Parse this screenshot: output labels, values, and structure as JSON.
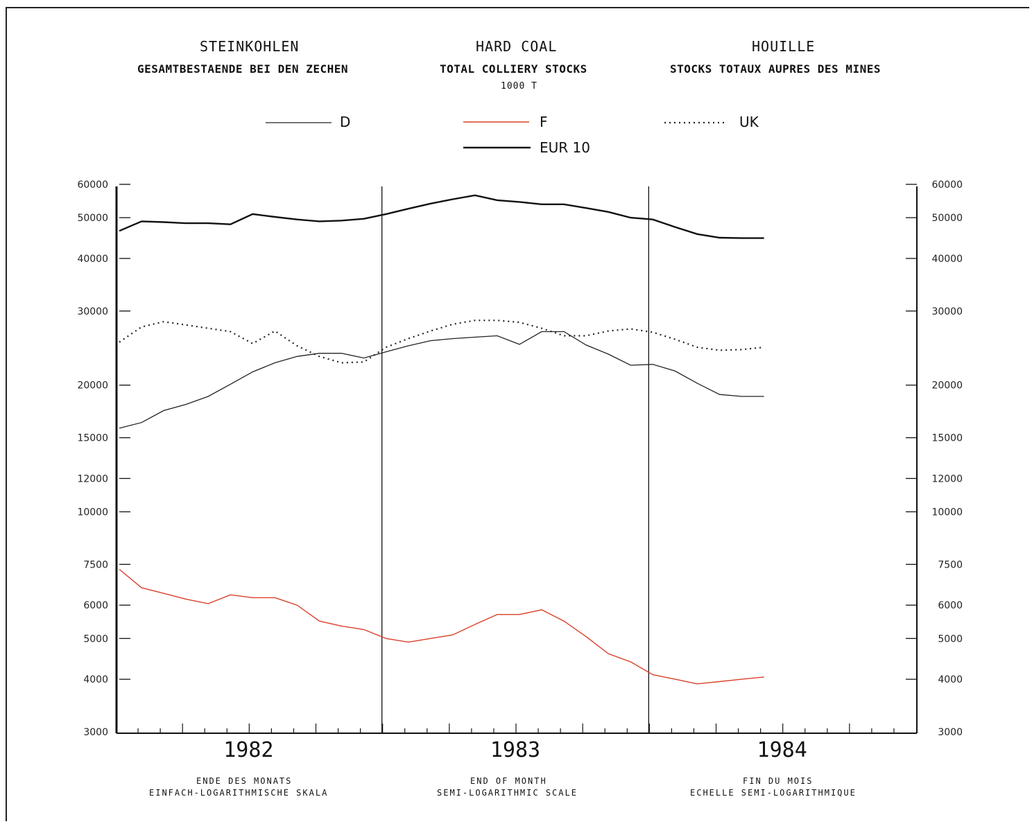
{
  "titles": {
    "de": {
      "title": "STEINKOHLEN",
      "subtitle": "GESAMTBESTAENDE BEI DEN ZECHEN"
    },
    "en": {
      "title": "HARD COAL",
      "subtitle": "TOTAL COLLIERY STOCKS",
      "unit": "1000 T"
    },
    "fr": {
      "title": "HOUILLE",
      "subtitle": "STOCKS TOTAUX AUPRES DES MINES"
    }
  },
  "footer": {
    "de": {
      "line1": "ENDE DES MONATS",
      "line2": "EINFACH-LOGARITHMISCHE SKALA"
    },
    "en": {
      "line1": "END OF MONTH",
      "line2": "SEMI-LOGARITHMIC SCALE"
    },
    "fr": {
      "line1": "FIN DU MOIS",
      "line2": "ECHELLE SEMI-LOGARITHMIQUE"
    }
  },
  "colors": {
    "D": "#222222",
    "F": "#d9402a",
    "UK": "#222222",
    "EUR 10": "#111111"
  },
  "chart_data": {
    "type": "line",
    "title": "HARD COAL",
    "subtitle": "TOTAL COLLIERY STOCKS",
    "ylabel": "1000 T",
    "y_scale": "log",
    "ylim": [
      3000,
      60000
    ],
    "y_ticks": [
      3000,
      4000,
      5000,
      6000,
      7500,
      10000,
      12000,
      15000,
      20000,
      30000,
      40000,
      50000,
      60000
    ],
    "x_years": [
      "1982",
      "1983",
      "1984"
    ],
    "x_months": [
      "1982-01",
      "1982-02",
      "1982-03",
      "1982-04",
      "1982-05",
      "1982-06",
      "1982-07",
      "1982-08",
      "1982-09",
      "1982-10",
      "1982-11",
      "1982-12",
      "1983-01",
      "1983-02",
      "1983-03",
      "1983-04",
      "1983-05",
      "1983-06",
      "1983-07",
      "1983-08",
      "1983-09",
      "1983-10",
      "1983-11",
      "1983-12",
      "1984-01",
      "1984-02",
      "1984-03",
      "1984-04",
      "1984-05",
      "1984-06"
    ],
    "grid": false,
    "legend_position": "top",
    "series": [
      {
        "name": "D",
        "style": "thin",
        "values": [
          15800,
          16300,
          17400,
          18000,
          18800,
          20100,
          21500,
          22600,
          23400,
          23800,
          23800,
          23200,
          24000,
          24800,
          25500,
          25800,
          26000,
          26200,
          25000,
          26800,
          26800,
          24900,
          23700,
          22300,
          22400,
          21600,
          20200,
          19000,
          18800,
          18800
        ]
      },
      {
        "name": "F",
        "style": "red",
        "values": [
          7300,
          6600,
          6400,
          6200,
          6050,
          6350,
          6250,
          6250,
          6000,
          5500,
          5350,
          5250,
          5000,
          4900,
          5000,
          5100,
          5400,
          5700,
          5700,
          5850,
          5500,
          5050,
          4600,
          4400,
          4100,
          4000,
          3900,
          3950,
          4000,
          4050
        ]
      },
      {
        "name": "UK",
        "style": "dotted",
        "values": [
          25300,
          27500,
          28300,
          27800,
          27300,
          26800,
          25100,
          26900,
          24800,
          23400,
          22600,
          22700,
          24600,
          25800,
          26900,
          27900,
          28500,
          28500,
          28200,
          27300,
          26200,
          26200,
          26900,
          27200,
          26700,
          25700,
          24600,
          24200,
          24300,
          24600
        ]
      },
      {
        "name": "EUR 10",
        "style": "thick",
        "values": [
          46500,
          49000,
          48800,
          48500,
          48500,
          48200,
          51000,
          50200,
          49500,
          49000,
          49200,
          49700,
          51000,
          52500,
          54000,
          55300,
          56500,
          55000,
          54500,
          53800,
          53800,
          52700,
          51600,
          50000,
          49500,
          47500,
          45700,
          44800,
          44700,
          44700
        ]
      }
    ]
  }
}
